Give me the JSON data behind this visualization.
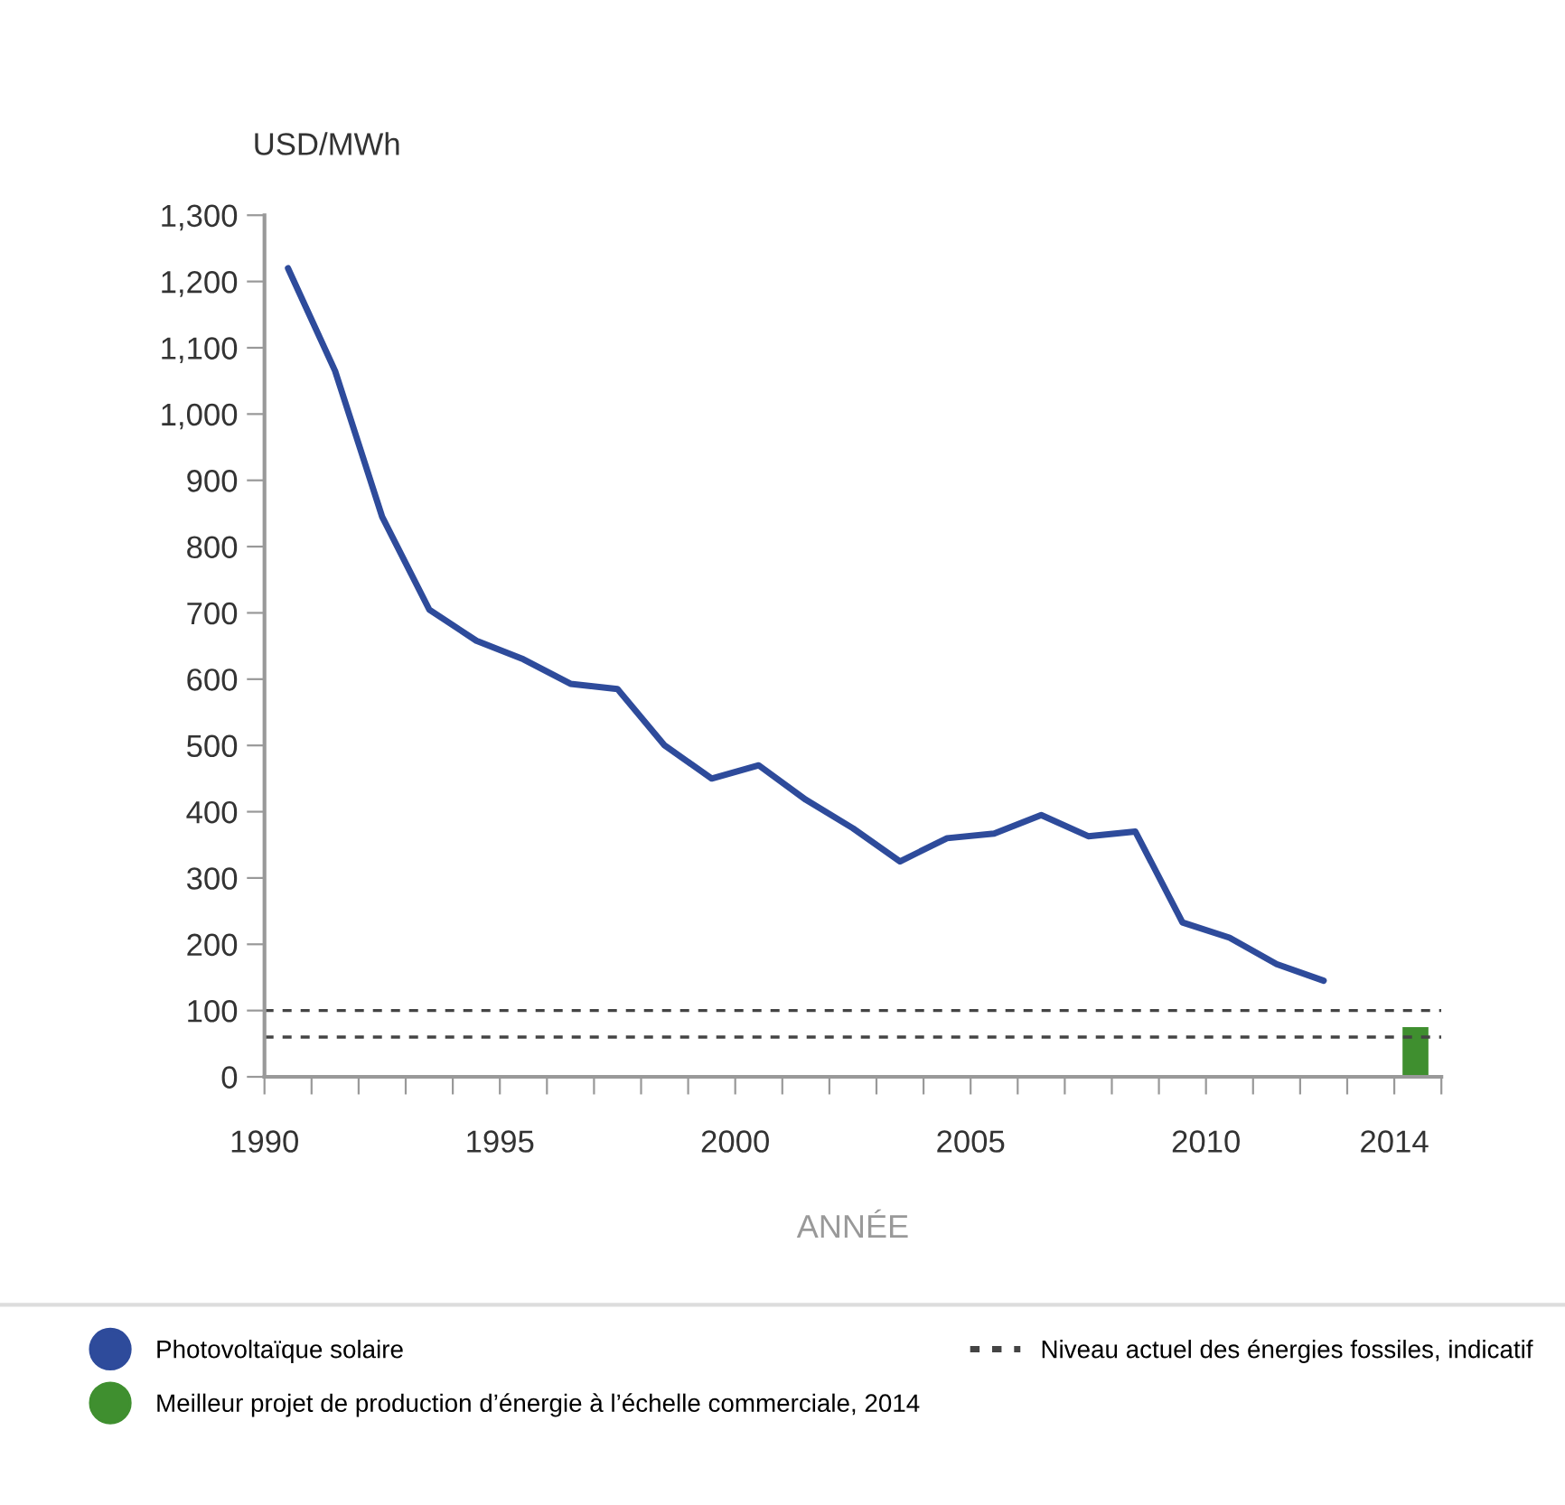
{
  "chart_data": {
    "type": "line",
    "ylabel": "USD/MWh",
    "xlabel": "ANNÉE",
    "series": [
      {
        "name": "Photovoltaïque solaire",
        "color": "#2e4b9b",
        "x": [
          1990.5,
          1991.5,
          1992.5,
          1993.5,
          1994.5,
          1995.5,
          1996.5,
          1997.5,
          1998.5,
          1999.5,
          2000.5,
          2001.5,
          2002.5,
          2003.5,
          2004.5,
          2005.5,
          2006.5,
          2007.5,
          2008.5,
          2009.5,
          2010.5,
          2011.5,
          2012.5
        ],
        "values": [
          1220,
          1065,
          845,
          705,
          658,
          630,
          593,
          585,
          500,
          450,
          470,
          418,
          375,
          325,
          360,
          367,
          395,
          363,
          370,
          233,
          210,
          170,
          145
        ]
      },
      {
        "name": "Meilleur projet de production d’énergie à l’échelle commerciale, 2014",
        "type": "bar",
        "color": "#3f8f2f",
        "x": [
          2014.45
        ],
        "values": [
          75
        ]
      }
    ],
    "ref_lines": [
      {
        "axis": "y",
        "value": 100,
        "label": "Niveau actuel des énergies fossiles, indicatif",
        "color": "#444444",
        "line_style": "dashed"
      },
      {
        "axis": "y",
        "value": 60,
        "color": "#444444",
        "line_style": "dashed"
      }
    ],
    "xlim": [
      1990,
      2015
    ],
    "xticks": [
      1990,
      {
        "value": 1991,
        "label": null
      },
      {
        "value": 1992,
        "label": null
      },
      {
        "value": 1993,
        "label": null
      },
      {
        "value": 1994,
        "label": null
      },
      1995,
      {
        "value": 1996,
        "label": null
      },
      {
        "value": 1997,
        "label": null
      },
      {
        "value": 1998,
        "label": null
      },
      {
        "value": 1999,
        "label": null
      },
      2000,
      {
        "value": 2001,
        "label": null
      },
      {
        "value": 2002,
        "label": null
      },
      {
        "value": 2003,
        "label": null
      },
      {
        "value": 2004,
        "label": null
      },
      2005,
      {
        "value": 2006,
        "label": null
      },
      {
        "value": 2007,
        "label": null
      },
      {
        "value": 2008,
        "label": null
      },
      {
        "value": 2009,
        "label": null
      },
      2010,
      {
        "value": 2011,
        "label": null
      },
      {
        "value": 2012,
        "label": null
      },
      {
        "value": 2013,
        "label": null
      },
      2014,
      {
        "value": 2015,
        "label": null
      }
    ],
    "ylim": [
      0,
      1300
    ],
    "yticks": [
      0,
      100,
      200,
      300,
      400,
      500,
      600,
      700,
      800,
      900,
      {
        "value": 1000,
        "label": "1,000"
      },
      {
        "value": 1100,
        "label": "1,100"
      },
      {
        "value": 1200,
        "label": "1,200"
      },
      {
        "value": 1300,
        "label": "1,300"
      }
    ],
    "legend": "bottom",
    "grid": false
  }
}
